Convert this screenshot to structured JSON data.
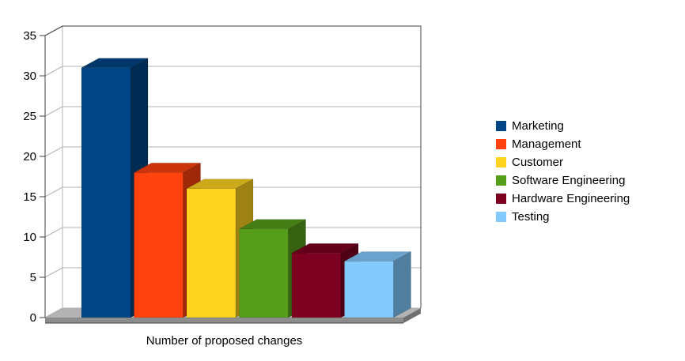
{
  "page": {
    "background": "#ffffff"
  },
  "chart_data": {
    "type": "bar",
    "style": "3d",
    "title": "",
    "xlabel": "Number of proposed changes",
    "ylabel": "",
    "categories": [
      "Marketing",
      "Management",
      "Customer",
      "Software Engineering",
      "Hardware Engineering",
      "Testing"
    ],
    "values": [
      31,
      18,
      16,
      11,
      8,
      7
    ],
    "colors": [
      "#004586",
      "#ff420e",
      "#ffd320",
      "#579d1c",
      "#7e0021",
      "#83caff"
    ],
    "ylim": [
      0,
      35
    ],
    "ytick_step": 5,
    "ytick_labels": [
      "0",
      "5",
      "10",
      "15",
      "20",
      "25",
      "30",
      "35"
    ],
    "grid": true,
    "legend_position": "right",
    "legend": [
      "Marketing",
      "Management",
      "Customer",
      "Software Engineering",
      "Hardware Engineering",
      "Testing"
    ],
    "wall_color": "#ffffff",
    "floor_color": "#b3b3b3",
    "gridline_color": "#b3b3b3",
    "edge_color": "#404040",
    "text_color": "#000000"
  }
}
